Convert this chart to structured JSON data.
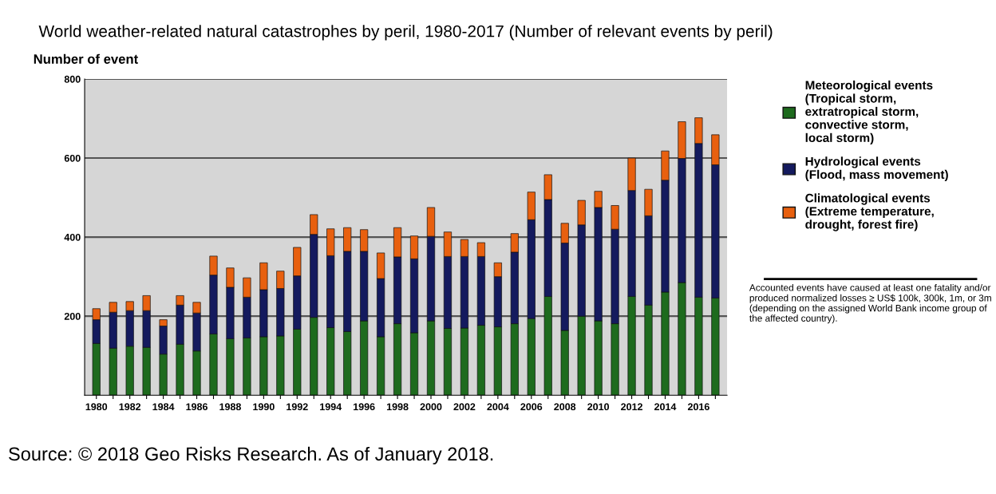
{
  "chart_data": {
    "type": "bar",
    "stacked": true,
    "title": "World weather-related natural catastrophes by peril, 1980-2017 (Number of relevant events by peril)",
    "ylabel": "Number of event",
    "categories": [
      "1980",
      null,
      "1982",
      null,
      "1984",
      null,
      "1986",
      null,
      "1988",
      null,
      "1990",
      null,
      "1992",
      null,
      "1994",
      null,
      "1996",
      null,
      "1998",
      null,
      "2000",
      null,
      "2002",
      null,
      "2004",
      null,
      "2006",
      null,
      "2008",
      null,
      "2010",
      null,
      "2012",
      null,
      "2014",
      null,
      "2016",
      null
    ],
    "series": [
      {
        "name": "Meteorological events\n(Tropical storm,\nextratropical storm,\nconvective storm,\nlocal storm)",
        "color": "#1e6b1e",
        "values": [
          131,
          119,
          124,
          121,
          104,
          129,
          112,
          155,
          143,
          145,
          148,
          150,
          167,
          197,
          171,
          161,
          188,
          148,
          181,
          158,
          188,
          169,
          170,
          177,
          173,
          181,
          194,
          250,
          164,
          200,
          188,
          181,
          250,
          228,
          261,
          285,
          248,
          246
        ]
      },
      {
        "name": "Hydrological events\n(Flood, mass movement)",
        "color": "#141a5e",
        "values": [
          60,
          91,
          90,
          93,
          71,
          99,
          96,
          149,
          130,
          103,
          119,
          120,
          135,
          210,
          182,
          203,
          176,
          147,
          169,
          187,
          214,
          182,
          181,
          174,
          127,
          181,
          250,
          245,
          221,
          231,
          287,
          239,
          268,
          226,
          283,
          314,
          389,
          337
        ]
      },
      {
        "name": "Climatological events\n(Extreme temperature,\ndrought, forest fire)",
        "color": "#e8600f",
        "values": [
          28,
          25,
          23,
          38,
          16,
          24,
          27,
          48,
          49,
          49,
          68,
          44,
          72,
          50,
          68,
          60,
          55,
          65,
          74,
          58,
          73,
          62,
          43,
          35,
          35,
          47,
          70,
          63,
          50,
          62,
          41,
          60,
          82,
          67,
          74,
          93,
          65,
          76
        ]
      }
    ],
    "ylim": [
      0,
      800
    ],
    "yticks": [
      200,
      400,
      600,
      800
    ],
    "grid": "y",
    "legend": "right",
    "annotations": [
      "Accounted events have caused at least one fatality and/or produced normalized losses ≥ US$ 100k, 300k, 1m, or 3m (depending on the assigned World Bank income group of the affected country).",
      "Source: © 2018 Geo Risks Research. As of January 2018."
    ]
  }
}
